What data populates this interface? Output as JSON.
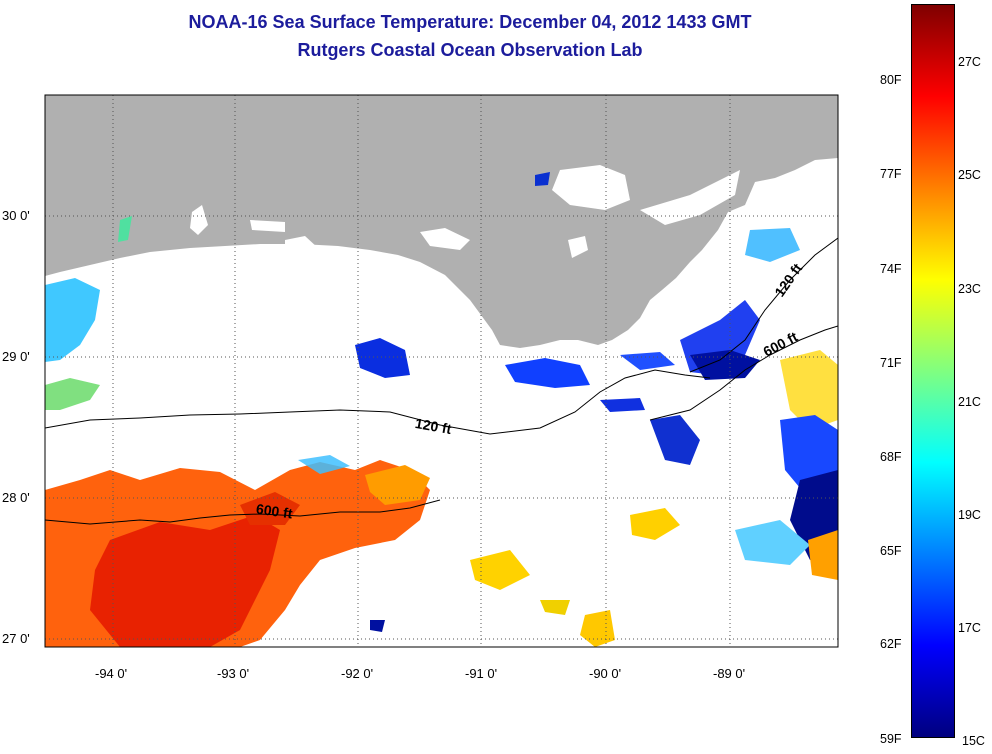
{
  "header": {
    "title": "NOAA-16 Sea Surface Temperature:  December 04, 2012 1433 GMT",
    "subtitle": "Rutgers Coastal Ocean Observation Lab"
  },
  "map": {
    "longitude_labels": [
      "-94 0'",
      "-93 0'",
      "-92 0'",
      "-91 0'",
      "-90 0'",
      "-89 0'"
    ],
    "latitude_labels": [
      "30 0'",
      "29 0'",
      "28 0'",
      "27 0'"
    ],
    "lon_range": [
      -94.5,
      -88.3
    ],
    "lat_range": [
      26.95,
      30.85
    ],
    "contours": [
      {
        "label": "120 ft"
      },
      {
        "label": "600 ft"
      },
      {
        "label": "120 ft"
      },
      {
        "label": "600 ft"
      }
    ],
    "colors": {
      "land": "#b0b0b0",
      "cloud": "#ffffff",
      "frame": "#000000"
    }
  },
  "colorbar": {
    "fahrenheit_labels": [
      "80F",
      "77F",
      "74F",
      "71F",
      "68F",
      "65F",
      "62F",
      "59F"
    ],
    "celsius_labels": [
      "27C",
      "25C",
      "23C",
      "21C",
      "19C",
      "17C",
      "15C"
    ],
    "gradient": [
      "#7f0000",
      "#ff0000",
      "#ff8000",
      "#ffff00",
      "#80ff80",
      "#00ffff",
      "#0080ff",
      "#0000ff",
      "#00007f"
    ]
  }
}
